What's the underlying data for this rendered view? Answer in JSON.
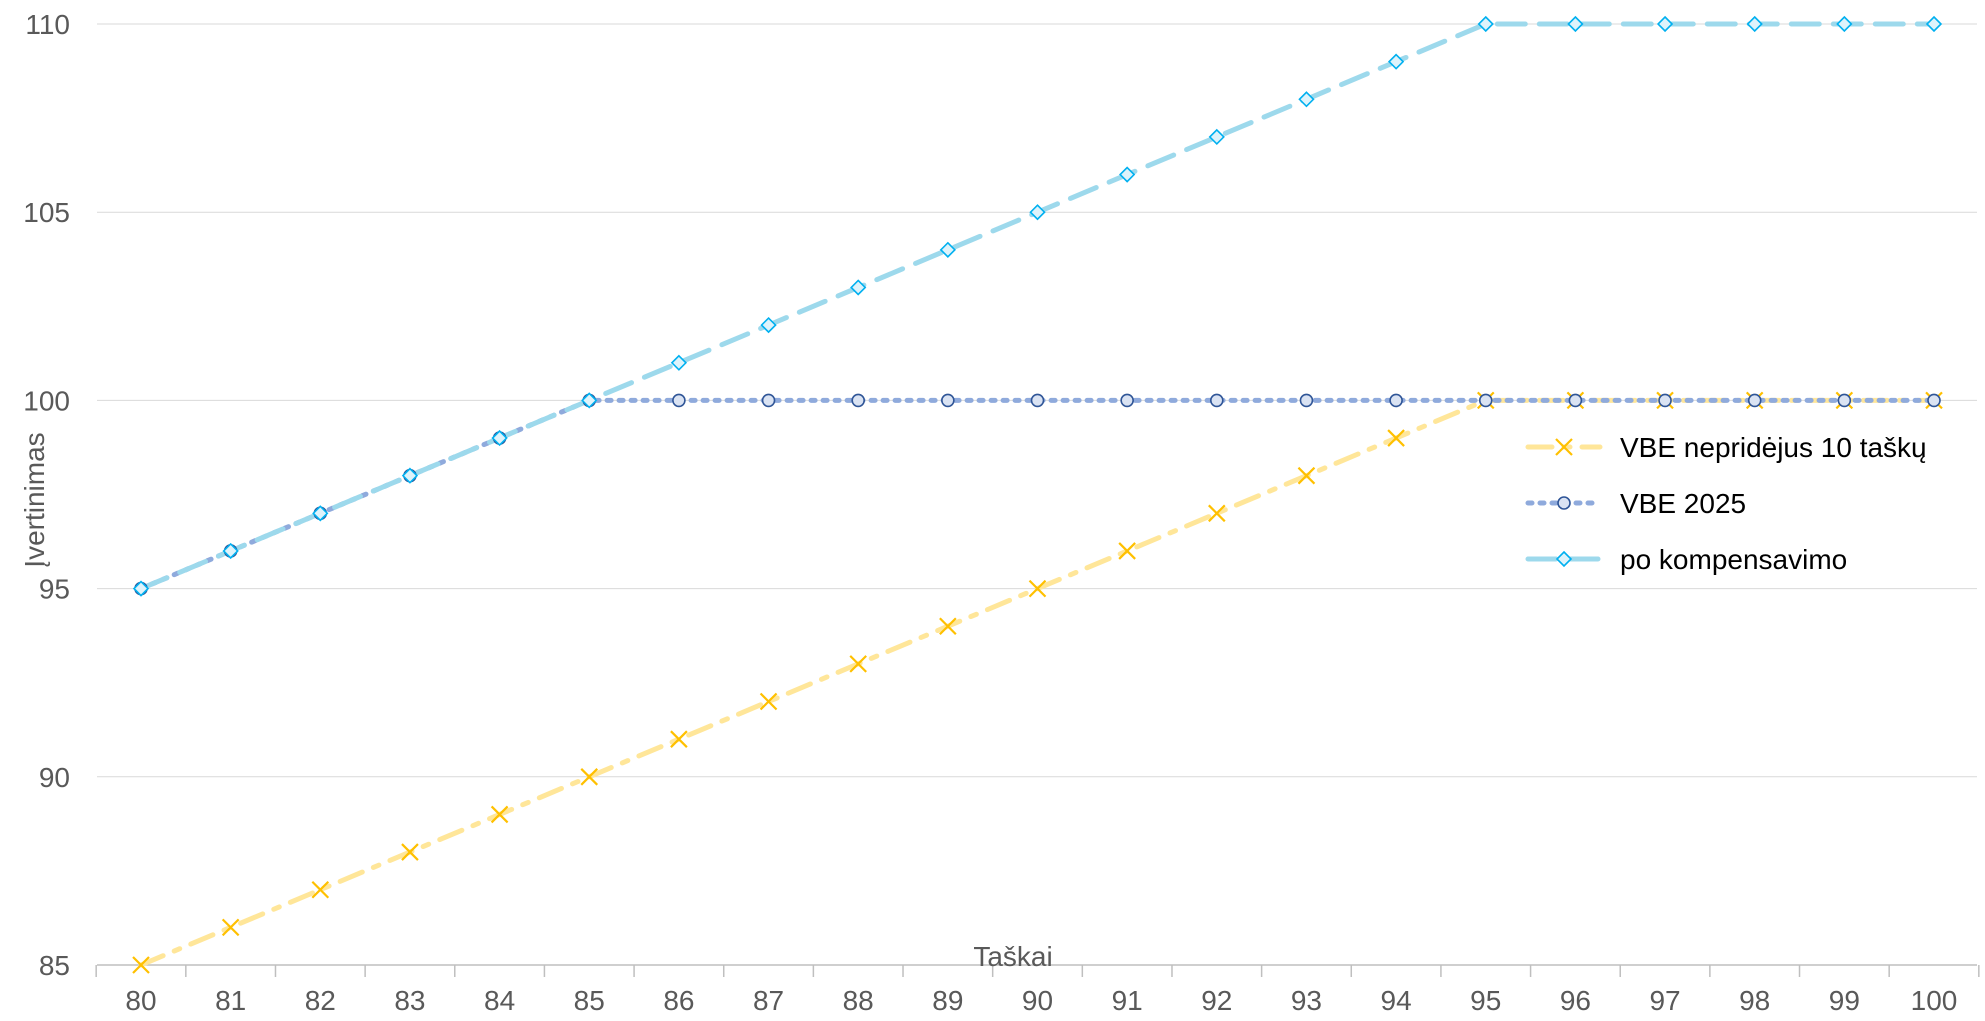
{
  "chart_data": {
    "type": "line",
    "xlabel": "Taškai",
    "ylabel": "Įvertinimas",
    "xlim": [
      80,
      100
    ],
    "ylim": [
      85,
      110
    ],
    "x_ticks": [
      80,
      81,
      82,
      83,
      84,
      85,
      86,
      87,
      88,
      89,
      90,
      91,
      92,
      93,
      94,
      95,
      96,
      97,
      98,
      99,
      100
    ],
    "y_ticks": [
      85,
      90,
      95,
      100,
      105,
      110
    ],
    "grid": "horizontal",
    "legend_position": "right",
    "x": [
      80,
      81,
      82,
      83,
      84,
      85,
      86,
      87,
      88,
      89,
      90,
      91,
      92,
      93,
      94,
      95,
      96,
      97,
      98,
      99,
      100
    ],
    "series": [
      {
        "name": "VBE nepridėjus 10 taškų",
        "color": "#FFC000",
        "line_color": "#FFE699",
        "marker": "x",
        "values": [
          85,
          86,
          87,
          88,
          89,
          90,
          91,
          92,
          93,
          94,
          95,
          96,
          97,
          98,
          99,
          100,
          100,
          100,
          100,
          100,
          100
        ]
      },
      {
        "name": "VBE 2025",
        "color": "#2F5597",
        "line_color": "#8FAADC",
        "marker": "circle",
        "values": [
          95,
          96,
          97,
          98,
          99,
          100,
          100,
          100,
          100,
          100,
          100,
          100,
          100,
          100,
          100,
          100,
          100,
          100,
          100,
          100,
          100
        ]
      },
      {
        "name": "po kompensavimo",
        "color": "#00B0F0",
        "line_color": "#9DD9EC",
        "marker": "diamond",
        "values": [
          95,
          96,
          97,
          98,
          99,
          100,
          101,
          102,
          103,
          104,
          105,
          106,
          107,
          108,
          109,
          110,
          110,
          110,
          110,
          110,
          110
        ]
      }
    ]
  }
}
